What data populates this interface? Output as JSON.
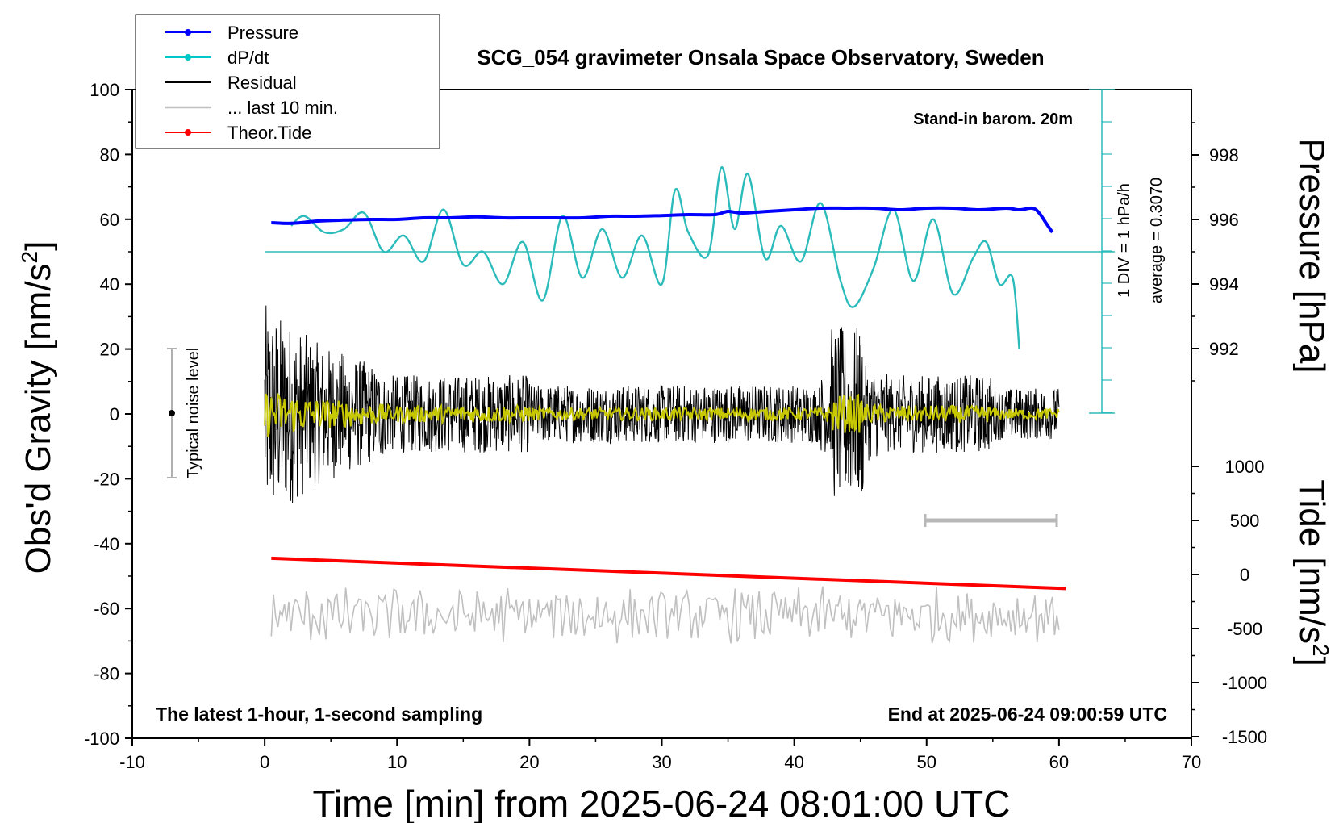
{
  "chart_data": {
    "type": "line",
    "title": "SCG_054 gravimeter Onsala Space Observatory, Sweden",
    "xlabel": "Time [min] from 2025-06-24 08:01:00 UTC",
    "ylabel": "Obs'd Gravity [nm/s",
    "ylabel_sup": "2",
    "ylabel_end": "]",
    "y2label": "Pressure [hPa]",
    "y3label": "Tide [nm/s",
    "y3label_sup": "2",
    "y3label_end": "]",
    "xlim": [
      -10,
      70
    ],
    "ylim": [
      -100,
      100
    ],
    "pressure_lim": [
      990,
      1000
    ],
    "tide_lim": [
      -1500,
      1500
    ],
    "x_ticks": [
      "-10",
      "0",
      "10",
      "20",
      "30",
      "40",
      "50",
      "60",
      "70"
    ],
    "y_ticks": [
      "-100",
      "-80",
      "-60",
      "-40",
      "-20",
      "0",
      "20",
      "40",
      "60",
      "80",
      "100"
    ],
    "pressure_ticks": [
      "992",
      "994",
      "996",
      "998"
    ],
    "tide_ticks": [
      "-1500",
      "-1000",
      "-500",
      "0",
      "500",
      "1000"
    ],
    "annotations": {
      "barometer": "Stand-in barom. 20m",
      "bottom_left": "The latest 1-hour, 1-second sampling",
      "bottom_right": "End at 2025-06-24 09:00:59 UTC",
      "noise": "Typical noise level",
      "dpdt_scale": "1 DIV = 1 hPa/h",
      "dpdt_average": "average = 0.3070"
    },
    "legend": {
      "position": "top-left",
      "entries": [
        {
          "label": "Pressure",
          "color": "#0000ff",
          "marker": true
        },
        {
          "label": "dP/dt",
          "color": "#00c8c8",
          "marker": true
        },
        {
          "label": "Residual",
          "color": "#000000",
          "marker": false
        },
        {
          "label": "... last 10 min.",
          "color": "#c0c0c0",
          "marker": false
        },
        {
          "label": "Theor.Tide",
          "color": "#ff0000",
          "marker": true
        }
      ]
    },
    "series": [
      {
        "name": "Pressure",
        "units": "hPa",
        "x": [
          0.5,
          2,
          4,
          6,
          8,
          10,
          12,
          14,
          16,
          18,
          20,
          22,
          24,
          26,
          28,
          30,
          32,
          34,
          35,
          36,
          38,
          40,
          42,
          44,
          46,
          48,
          50,
          52,
          54,
          56,
          57,
          58,
          58.5,
          59,
          59.5
        ],
        "y": [
          995.9,
          995.88,
          995.95,
          995.98,
          996.0,
          996.0,
          996.05,
          996.05,
          996.08,
          996.05,
          996.05,
          996.05,
          996.05,
          996.1,
          996.1,
          996.12,
          996.15,
          996.15,
          996.25,
          996.2,
          996.25,
          996.3,
          996.35,
          996.35,
          996.35,
          996.3,
          996.35,
          996.35,
          996.3,
          996.35,
          996.3,
          996.35,
          996.2,
          995.9,
          995.6
        ]
      },
      {
        "name": "dP/dt",
        "units": "hPa/h (1 DIV = 1 hPa/h, baseline = 50)",
        "x": [
          2,
          3,
          4.5,
          6,
          7.5,
          9,
          10.5,
          12,
          13.5,
          15,
          16.5,
          18,
          19.5,
          21,
          22.5,
          24,
          25.5,
          27,
          28.5,
          30,
          31,
          32,
          33.5,
          34.5,
          35.5,
          36.5,
          37.8,
          39,
          40.5,
          42,
          43.5,
          44.5,
          46,
          47.5,
          49,
          50.5,
          52,
          53.5,
          54.5,
          55.5,
          56.5,
          57
        ],
        "y": [
          58,
          61,
          56,
          57,
          62,
          50,
          55,
          47,
          63,
          46,
          50,
          40,
          53,
          35,
          61,
          42,
          57,
          42,
          55,
          40,
          69,
          56,
          49,
          76,
          57,
          74,
          48,
          58,
          47,
          65,
          41,
          33,
          45,
          63,
          41,
          60,
          37,
          48,
          53,
          40,
          42,
          20
        ]
      },
      {
        "name": "Residual",
        "units": "nm/s^2",
        "note": "1-second samples; envelope approximately +/-35 near 0-3 min, +/-10 mid-hour, +/-28 near 43-45 min"
      },
      {
        "name": "... last 10 min.",
        "units": "nm/s^2 (offset, plotted around -62)"
      },
      {
        "name": "Theor.Tide",
        "units": "nm/s^2",
        "x": [
          0.5,
          60.5
        ],
        "y": [
          150,
          -130
        ]
      }
    ]
  }
}
